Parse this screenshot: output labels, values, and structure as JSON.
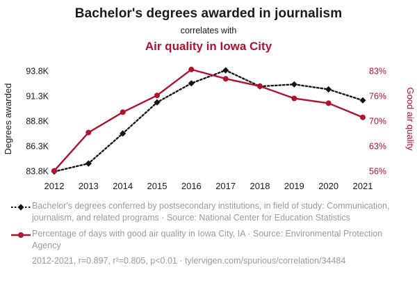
{
  "header": {
    "title": "Bachelor's degrees awarded in journalism",
    "connector": "correlates with",
    "subtitle": "Air quality in Iowa City"
  },
  "colors": {
    "accent_red": "#b0132f",
    "series_black": "#141414",
    "legend_gray": "#9b9b9b"
  },
  "chart_data": {
    "type": "line",
    "x": [
      2012,
      2013,
      2014,
      2015,
      2016,
      2017,
      2018,
      2019,
      2020,
      2021
    ],
    "left_axis": {
      "label": "Degrees awarded",
      "tick_values": [
        83800,
        86300,
        88800,
        91300,
        93800
      ],
      "tick_labels": [
        "83.8K",
        "86.3K",
        "88.8K",
        "91.3K",
        "93.8K"
      ],
      "range": [
        83500,
        94600
      ]
    },
    "right_axis": {
      "label": "Good air quality",
      "tick_labels": [
        "56%",
        "63%",
        "70%",
        "76%",
        "83%"
      ],
      "domain": [
        56,
        83
      ],
      "mapped_to": [
        83800,
        93800
      ]
    },
    "series": [
      {
        "name": "Bachelor's degrees conferred in journalism (Degrees awarded)",
        "axis": "left",
        "color": "#141414",
        "line_style": "dotted",
        "marker": "diamond",
        "values": [
          83800,
          84600,
          87600,
          90700,
          92600,
          93900,
          92300,
          92500,
          92000,
          90900
        ]
      },
      {
        "name": "Percentage of days with good air quality in Iowa City, IA",
        "axis": "right",
        "color": "#b0132f",
        "line_style": "solid",
        "marker": "circle",
        "values": [
          56.2,
          66.5,
          72.0,
          76.5,
          83.5,
          81.0,
          79.0,
          75.7,
          74.4,
          70.6
        ]
      }
    ],
    "grid": false,
    "legend_position": "bottom"
  },
  "legend": {
    "items": [
      {
        "text": "Bachelor's degrees conferred by postsecondary institutions, in field of study: Communication, journalism, and related programs · Source: National Center for Education Statistics"
      },
      {
        "text": "Percentage of days with good air quality in Iowa City, IA · Source: Environmental Protection Agency"
      }
    ],
    "footer": "2012-2021, r=0.897, r²=0.805, p<0.01 · tylervigen.com/spurious/correlation/34484"
  }
}
